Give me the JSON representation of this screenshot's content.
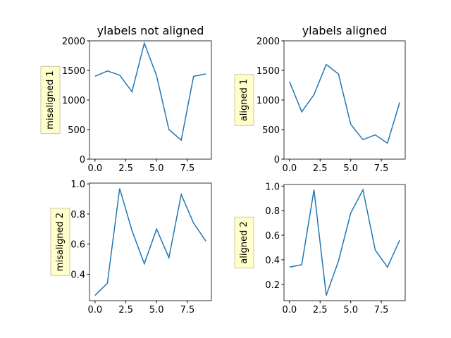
{
  "chart_data": [
    {
      "type": "line",
      "title": "ylabels not aligned",
      "ylabel": "misaligned 1",
      "color": "#1f77b4",
      "x": [
        0,
        1,
        2,
        3,
        4,
        5,
        6,
        7,
        8,
        9
      ],
      "values": [
        1400,
        1490,
        1420,
        1140,
        1960,
        1410,
        500,
        320,
        1400,
        1440
      ],
      "xlim": [
        -0.45,
        9.45
      ],
      "ylim": [
        0,
        2000
      ],
      "xticks": [
        {
          "value": 0,
          "label": "0.0"
        },
        2.5,
        {
          "value": 5,
          "label": "5.0"
        },
        7.5
      ],
      "yticks": [
        0,
        500,
        1000,
        1500,
        2000
      ]
    },
    {
      "type": "line",
      "title": "ylabels aligned",
      "ylabel": "aligned 1",
      "color": "#1f77b4",
      "x": [
        0,
        1,
        2,
        3,
        4,
        5,
        6,
        7,
        8,
        9
      ],
      "values": [
        1310,
        800,
        1090,
        1600,
        1440,
        590,
        330,
        410,
        270,
        960
      ],
      "xlim": [
        -0.45,
        9.45
      ],
      "ylim": [
        0,
        2000
      ],
      "xticks": [
        {
          "value": 0,
          "label": "0.0"
        },
        2.5,
        {
          "value": 5,
          "label": "5.0"
        },
        7.5
      ],
      "yticks": [
        0,
        500,
        1000,
        1500,
        2000
      ]
    },
    {
      "type": "line",
      "ylabel": "misaligned 2",
      "color": "#1f77b4",
      "x": [
        0,
        1,
        2,
        3,
        4,
        5,
        6,
        7,
        8,
        9
      ],
      "values": [
        0.26,
        0.34,
        0.97,
        0.69,
        0.47,
        0.7,
        0.51,
        0.93,
        0.74,
        0.62
      ],
      "xlim": [
        -0.45,
        9.45
      ],
      "ylim": [
        0.2245,
        1.0055
      ],
      "xticks": [
        {
          "value": 0,
          "label": "0.0"
        },
        2.5,
        {
          "value": 5,
          "label": "5.0"
        },
        7.5
      ],
      "yticks": [
        0.4,
        0.6,
        0.8,
        {
          "value": 1,
          "label": "1.0"
        }
      ]
    },
    {
      "type": "line",
      "ylabel": "aligned 2",
      "color": "#1f77b4",
      "x": [
        0,
        1,
        2,
        3,
        4,
        5,
        6,
        7,
        8,
        9
      ],
      "values": [
        0.34,
        0.36,
        0.97,
        0.11,
        0.39,
        0.78,
        0.97,
        0.48,
        0.34,
        0.56
      ],
      "xlim": [
        -0.45,
        9.45
      ],
      "ylim": [
        0.067,
        1.013
      ],
      "xticks": [
        {
          "value": 0,
          "label": "0.0"
        },
        2.5,
        {
          "value": 5,
          "label": "5.0"
        },
        7.5
      ],
      "yticks": [
        0.2,
        0.4,
        0.6,
        0.8,
        {
          "value": 1,
          "label": "1.0"
        }
      ]
    }
  ]
}
